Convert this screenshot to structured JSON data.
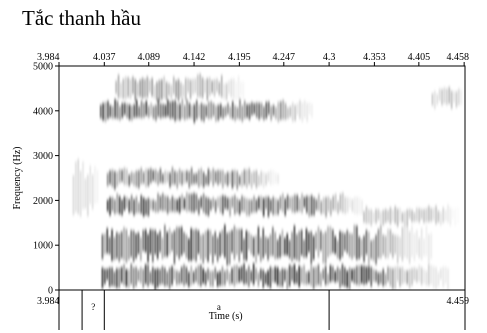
{
  "title": "Tắc thanh hầu",
  "chart_data": {
    "type": "heatmap",
    "subtype": "spectrogram",
    "title": "Tắc thanh hầu",
    "ylabel": "Frequency (Hz)",
    "xlabel": "Time (s)",
    "xlim": [
      3.984,
      4.459
    ],
    "ylim": [
      0,
      5000
    ],
    "y_ticks": [
      "0",
      "1000",
      "2000",
      "3000",
      "4000",
      "5000"
    ],
    "y_tick_values": [
      0,
      1000,
      2000,
      3000,
      4000,
      5000
    ],
    "x_top_ticks": [
      "3.984",
      "4.037",
      "4.089",
      "4.142",
      "4.195",
      "4.247",
      "4.3",
      "4.353",
      "4.405",
      "4.458"
    ],
    "x_top_tick_values": [
      3.984,
      4.037,
      4.089,
      4.142,
      4.195,
      4.247,
      4.3,
      4.353,
      4.405,
      4.458
    ],
    "x_bottom_start": "3.984",
    "x_bottom_end": "4.459",
    "tier_boundaries": [
      4.011,
      4.037,
      4.3
    ],
    "tier_labels": [
      {
        "text": "?",
        "time": 4.024
      },
      {
        "text": "a",
        "time": 4.171
      }
    ],
    "energy_bands": [
      {
        "from": 4.032,
        "to": 4.28,
        "center_hz": 4000,
        "width_hz": 420,
        "strength": 0.9
      },
      {
        "from": 4.05,
        "to": 4.2,
        "center_hz": 4500,
        "width_hz": 500,
        "strength": 0.5
      },
      {
        "from": 4.04,
        "to": 4.24,
        "center_hz": 2500,
        "width_hz": 380,
        "strength": 0.75
      },
      {
        "from": 4.04,
        "to": 4.34,
        "center_hz": 1900,
        "width_hz": 420,
        "strength": 0.95
      },
      {
        "from": 4.034,
        "to": 4.42,
        "center_hz": 1000,
        "width_hz": 700,
        "strength": 0.95
      },
      {
        "from": 4.034,
        "to": 4.44,
        "center_hz": 300,
        "width_hz": 450,
        "strength": 1.0
      },
      {
        "from": 4.34,
        "to": 4.45,
        "center_hz": 1650,
        "width_hz": 380,
        "strength": 0.35
      },
      {
        "from": 4.42,
        "to": 4.456,
        "center_hz": 4300,
        "width_hz": 400,
        "strength": 0.35
      },
      {
        "from": 4.0,
        "to": 4.03,
        "center_hz": 2200,
        "width_hz": 1200,
        "strength": 0.2
      }
    ]
  }
}
